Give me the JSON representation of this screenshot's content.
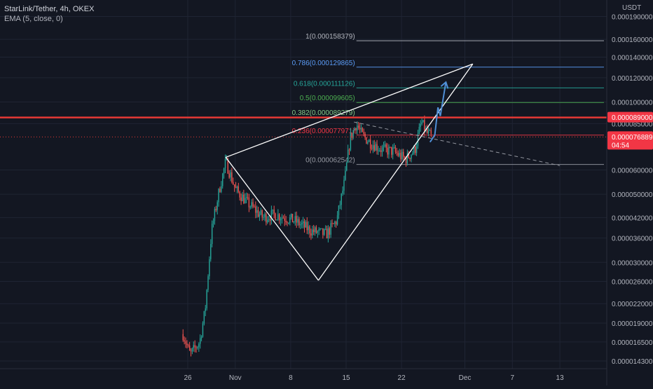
{
  "header": {
    "title": "StarLink/Tether, 4h, OKEX",
    "indicator": "EMA (5, close, 0)"
  },
  "price_axis": {
    "unit": "USDT",
    "tick_labels": [
      "0.000190000",
      "0.000160000",
      "0.000140000",
      "0.000120000",
      "0.000100000",
      "0.000085000",
      "0.000060000",
      "0.000050000",
      "0.000042000",
      "0.000036000",
      "0.000030000",
      "0.000026000",
      "0.000022000",
      "0.000019000",
      "0.000016500",
      "0.000014300"
    ],
    "badges": [
      {
        "label": "0.000089000",
        "color": "#f23645"
      },
      {
        "label": "0.000076889",
        "sublabel": "04:54",
        "color": "#f23645"
      }
    ]
  },
  "time_axis": {
    "labels": [
      "26",
      "Nov",
      "8",
      "15",
      "22",
      "Dec",
      "7",
      "13"
    ]
  },
  "colors": {
    "background": "#131722",
    "grid": "#1f2433",
    "up_candle": "#26a69a",
    "down_candle": "#ef5350",
    "resistance": "#e53935",
    "wedge": "#ffffff",
    "projection": "#4f8fd6"
  },
  "fib_levels": [
    {
      "label": "1(0.000158379)",
      "value": 0.000158379,
      "color": "#b2b5be"
    },
    {
      "label": "0.786(0.000129865)",
      "value": 0.000129865,
      "color": "#5b9cf6"
    },
    {
      "label": "0.618(0.000111126)",
      "value": 0.000111126,
      "color": "#26a69a"
    },
    {
      "label": "0.5(0.000099605)",
      "value": 9.9605e-05,
      "color": "#4caf50"
    },
    {
      "label": "0.382(0.000089279)",
      "value": 8.9279e-05,
      "color": "#81c784"
    },
    {
      "label": "0.236(0.000077971)",
      "value": 7.7971e-05,
      "color": "#f23645"
    },
    {
      "label": "0(0.000062542)",
      "value": 6.2542e-05,
      "color": "#9598a1"
    }
  ],
  "chart_data": {
    "type": "candlestick",
    "symbol": "StarLink/Tether",
    "interval": "4h",
    "exchange": "OKEX",
    "y_scale": "log",
    "ylim": [
      1.35e-05,
      0.000215
    ],
    "x_ticks": [
      {
        "label": "26",
        "day": 0
      },
      {
        "label": "Nov",
        "day": 6
      },
      {
        "label": "8",
        "day": 13
      },
      {
        "label": "15",
        "day": 20
      },
      {
        "label": "22",
        "day": 27
      },
      {
        "label": "Dec",
        "day": 35
      },
      {
        "label": "7",
        "day": 41
      },
      {
        "label": "13",
        "day": 47
      }
    ],
    "price_path": [
      {
        "day": -0.6,
        "price": 1.75e-05
      },
      {
        "day": 0.3,
        "price": 1.5e-05
      },
      {
        "day": 1.5,
        "price": 1.65e-05
      },
      {
        "day": 2.2,
        "price": 2.1e-05
      },
      {
        "day": 3.0,
        "price": 3.8e-05
      },
      {
        "day": 4.0,
        "price": 5.2e-05
      },
      {
        "day": 4.8,
        "price": 6.4e-05
      },
      {
        "day": 6.0,
        "price": 5.2e-05
      },
      {
        "day": 7.5,
        "price": 4.7e-05
      },
      {
        "day": 9.5,
        "price": 4.2e-05
      },
      {
        "day": 11.0,
        "price": 4.3e-05
      },
      {
        "day": 13.5,
        "price": 4.1e-05
      },
      {
        "day": 15.6,
        "price": 3.8e-05
      },
      {
        "day": 16.5,
        "price": 3.75e-05
      },
      {
        "day": 17.5,
        "price": 3.7e-05
      },
      {
        "day": 18.8,
        "price": 4.1e-05
      },
      {
        "day": 19.8,
        "price": 5.5e-05
      },
      {
        "day": 20.5,
        "price": 7.6e-05
      },
      {
        "day": 21.3,
        "price": 8.5e-05
      },
      {
        "day": 22.0,
        "price": 7.8e-05
      },
      {
        "day": 23.0,
        "price": 7.4e-05
      },
      {
        "day": 24.5,
        "price": 7e-05
      },
      {
        "day": 26.0,
        "price": 6.9e-05
      },
      {
        "day": 27.5,
        "price": 6.5e-05
      },
      {
        "day": 28.7,
        "price": 7e-05
      },
      {
        "day": 29.5,
        "price": 8.6e-05
      },
      {
        "day": 30.2,
        "price": 7.9e-05
      },
      {
        "day": 30.8,
        "price": 7.69e-05
      }
    ],
    "resistance_level": 8.9e-05,
    "last_price": 7.6889e-05,
    "wedge_lines": [
      {
        "from": {
          "day": 4.8,
          "price": 6.6e-05
        },
        "to": {
          "day": 36.0,
          "price": 0.000133
        }
      },
      {
        "from": {
          "day": 4.8,
          "price": 6.6e-05
        },
        "to": {
          "day": 16.5,
          "price": 2.62e-05
        }
      },
      {
        "from": {
          "day": 16.5,
          "price": 2.62e-05
        },
        "to": {
          "day": 36.0,
          "price": 0.000133
        }
      }
    ],
    "dashed_trend": {
      "from": {
        "day": 21.0,
        "price": 8.6e-05
      },
      "to": {
        "day": 47.0,
        "price": 6.2e-05
      }
    },
    "projection_path": [
      {
        "day": 30.6,
        "price": 7.4e-05
      },
      {
        "day": 31.2,
        "price": 7.8e-05
      },
      {
        "day": 31.6,
        "price": 9.6e-05
      },
      {
        "day": 31.9,
        "price": 9e-05
      },
      {
        "day": 32.6,
        "price": 0.000116
      }
    ]
  }
}
